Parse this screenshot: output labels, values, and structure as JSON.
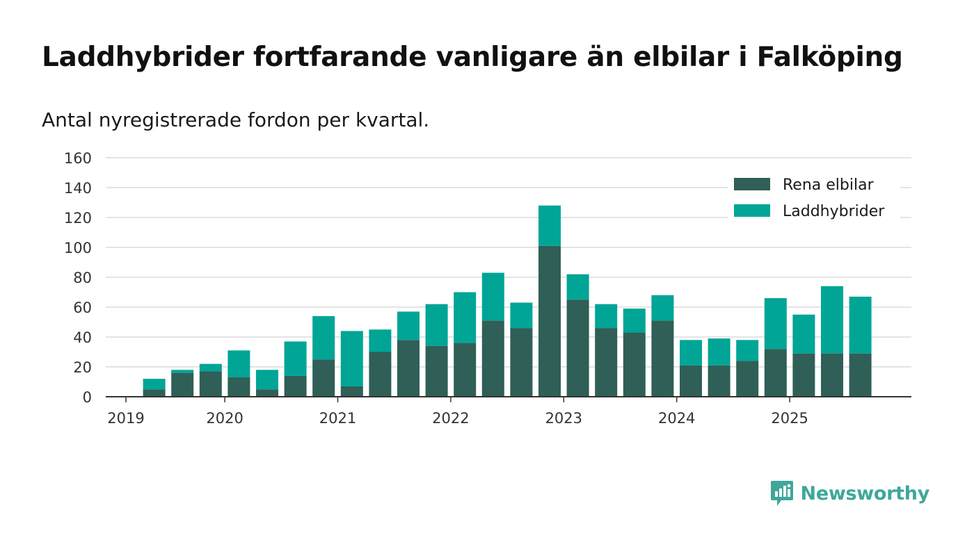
{
  "title": "Laddhybrider fortfarande vanligare än elbilar i Falköping",
  "subtitle": "Antal nyregistrerade fordon per kvartal.",
  "brand": {
    "name": "Newsworthy",
    "icon": "newsworthy-logo-icon",
    "color": "#3ea79a"
  },
  "chart_data": {
    "type": "bar",
    "stacked": true,
    "x": [
      "2019 Q1",
      "2019 Q2",
      "2019 Q3",
      "2019 Q4",
      "2020 Q1",
      "2020 Q2",
      "2020 Q3",
      "2020 Q4",
      "2021 Q1",
      "2021 Q2",
      "2021 Q3",
      "2021 Q4",
      "2022 Q1",
      "2022 Q2",
      "2022 Q3",
      "2022 Q4",
      "2023 Q1",
      "2023 Q2",
      "2023 Q3",
      "2023 Q4",
      "2024 Q1",
      "2024 Q2",
      "2024 Q3",
      "2024 Q4",
      "2025 Q1",
      "2025 Q2",
      "2025 Q3"
    ],
    "series": [
      {
        "name": "Rena elbilar",
        "color": "#2f5f57",
        "values": [
          0,
          5,
          16,
          17,
          13,
          5,
          14,
          25,
          7,
          30,
          38,
          34,
          36,
          51,
          46,
          101,
          65,
          46,
          43,
          51,
          21,
          21,
          24,
          32,
          29,
          29,
          29
        ]
      },
      {
        "name": "Laddhybrider",
        "color": "#00a596",
        "values": [
          0,
          7,
          2,
          5,
          18,
          13,
          23,
          29,
          37,
          15,
          19,
          28,
          34,
          32,
          17,
          27,
          17,
          16,
          16,
          17,
          17,
          18,
          14,
          34,
          26,
          45,
          38
        ]
      }
    ],
    "xticks": [
      "2019",
      "2020",
      "2021",
      "2022",
      "2023",
      "2024",
      "2025"
    ],
    "ylim": [
      0,
      160
    ],
    "yticks": [
      0,
      20,
      40,
      60,
      80,
      100,
      120,
      140,
      160
    ],
    "grid": true,
    "legend": "top-right"
  }
}
